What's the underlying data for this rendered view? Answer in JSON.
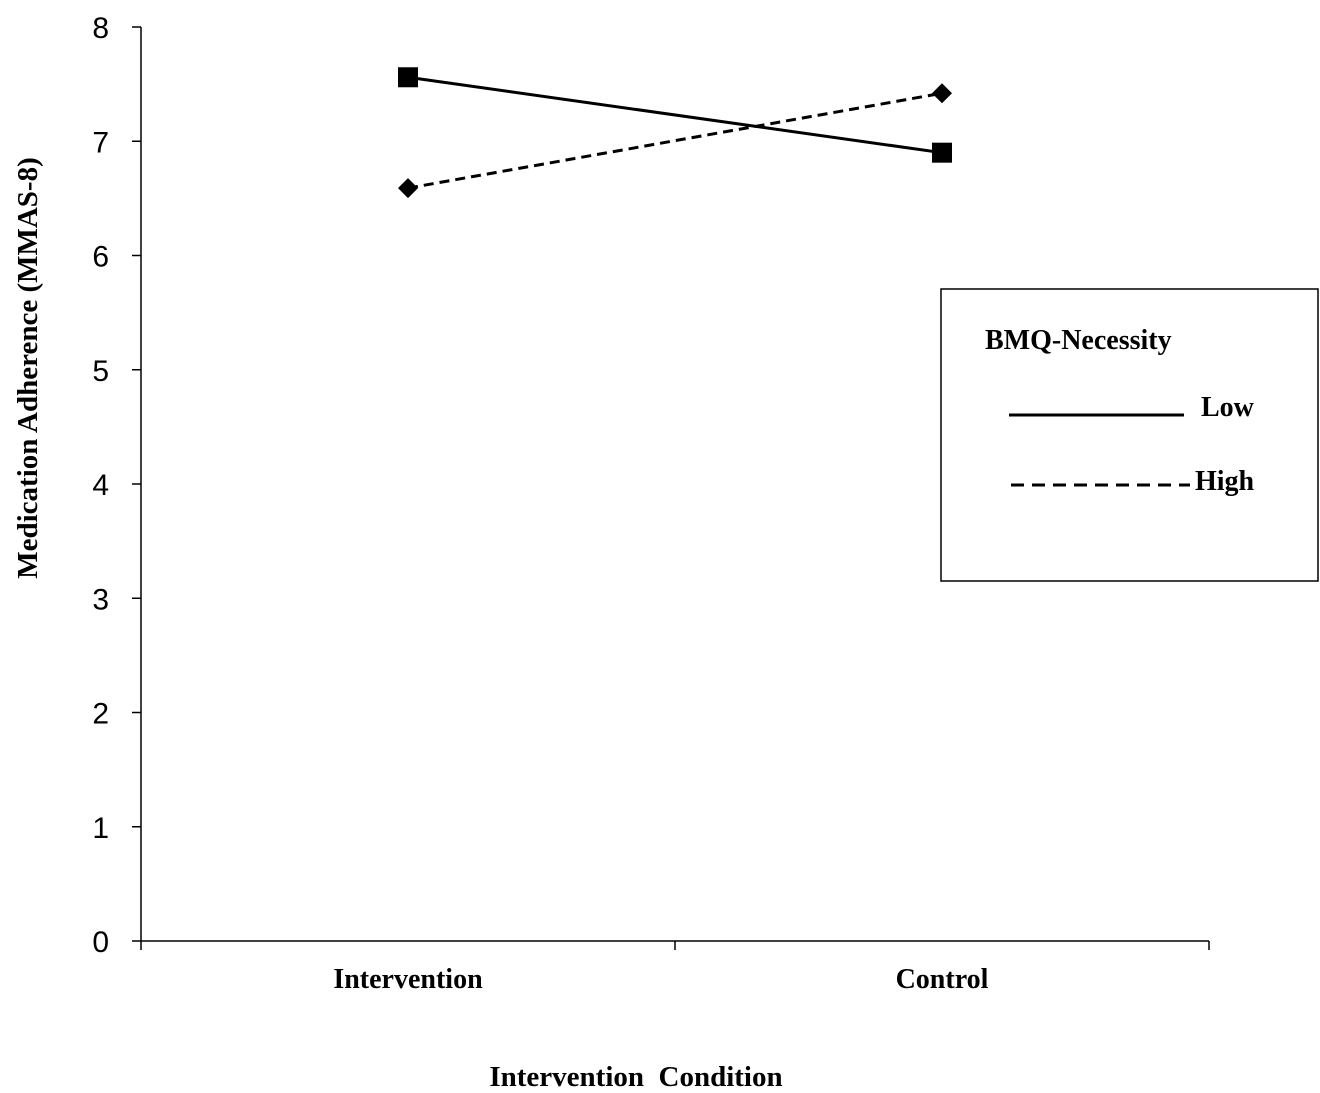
{
  "chart_data": {
    "type": "line",
    "xlabel": "Intervention  Condition",
    "ylabel": "Medication Adherence (MMAS-8)",
    "categories": [
      "Intervention",
      "Control"
    ],
    "ylim": [
      0,
      8
    ],
    "yticks": [
      "0",
      "1",
      "2",
      "3",
      "4",
      "5",
      "6",
      "7",
      "8"
    ],
    "grid": false,
    "legend": {
      "title": "BMQ-Necessity",
      "placement": "right",
      "entries": [
        "Low",
        "High"
      ]
    },
    "series": [
      {
        "name": "Low",
        "values": [
          7.56,
          6.9
        ],
        "line_style": "solid",
        "marker": "square",
        "color": "#000000"
      },
      {
        "name": "High",
        "values": [
          6.59,
          7.42
        ],
        "line_style": "dashed",
        "marker": "diamond",
        "color": "#000000"
      }
    ]
  }
}
